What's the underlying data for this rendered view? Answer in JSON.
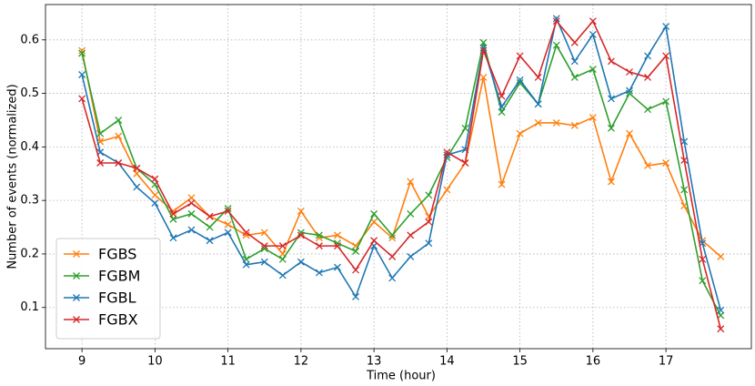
{
  "chart_data": {
    "type": "line",
    "x_label": "Time (hour)",
    "y_label": "Number of events (normalized)",
    "x": [
      9,
      9.25,
      9.5,
      9.75,
      10,
      10.25,
      10.5,
      10.75,
      11,
      11.25,
      11.5,
      11.75,
      12,
      12.25,
      12.5,
      12.75,
      13,
      13.25,
      13.5,
      13.75,
      14,
      14.25,
      14.5,
      14.75,
      15,
      15.25,
      15.5,
      15.75,
      16,
      16.25,
      16.5,
      16.75,
      17,
      17.25,
      17.5,
      17.75
    ],
    "series": [
      {
        "name": "FGBS",
        "color": "#ff7f0e",
        "values": [
          0.58,
          0.41,
          0.42,
          0.35,
          0.31,
          0.28,
          0.305,
          0.27,
          0.255,
          0.235,
          0.24,
          0.2,
          0.28,
          0.23,
          0.235,
          0.215,
          0.26,
          0.23,
          0.335,
          0.27,
          0.32,
          0.37,
          0.53,
          0.33,
          0.425,
          0.445,
          0.445,
          0.44,
          0.455,
          0.335,
          0.425,
          0.365,
          0.37,
          0.29,
          0.225,
          0.195
        ]
      },
      {
        "name": "FGBM",
        "color": "#2ca02c",
        "values": [
          0.575,
          0.425,
          0.45,
          0.36,
          0.33,
          0.265,
          0.275,
          0.25,
          0.285,
          0.19,
          0.21,
          0.19,
          0.24,
          0.235,
          0.22,
          0.205,
          0.275,
          0.235,
          0.275,
          0.31,
          0.38,
          0.435,
          0.595,
          0.465,
          0.52,
          0.48,
          0.59,
          0.53,
          0.545,
          0.435,
          0.5,
          0.47,
          0.485,
          0.32,
          0.15,
          0.085
        ]
      },
      {
        "name": "FGBL",
        "color": "#1f77b4",
        "values": [
          0.535,
          0.39,
          0.37,
          0.325,
          0.295,
          0.23,
          0.245,
          0.225,
          0.24,
          0.18,
          0.185,
          0.16,
          0.185,
          0.165,
          0.175,
          0.12,
          0.215,
          0.155,
          0.195,
          0.22,
          0.385,
          0.395,
          0.585,
          0.475,
          0.525,
          0.48,
          0.64,
          0.56,
          0.61,
          0.49,
          0.505,
          0.57,
          0.625,
          0.41,
          0.22,
          0.095
        ]
      },
      {
        "name": "FGBX",
        "color": "#d62728",
        "values": [
          0.49,
          0.37,
          0.37,
          0.36,
          0.34,
          0.275,
          0.295,
          0.27,
          0.28,
          0.24,
          0.215,
          0.215,
          0.235,
          0.215,
          0.215,
          0.17,
          0.225,
          0.195,
          0.235,
          0.26,
          0.39,
          0.37,
          0.58,
          0.495,
          0.57,
          0.53,
          0.635,
          0.595,
          0.635,
          0.56,
          0.54,
          0.53,
          0.57,
          0.375,
          0.19,
          0.06
        ]
      }
    ],
    "xlim": [
      8.5,
      18.17
    ],
    "ylim": [
      0.023,
      0.666
    ],
    "xticks": [
      9,
      10,
      11,
      12,
      13,
      14,
      15,
      16,
      17
    ],
    "yticks": [
      0.1,
      0.2,
      0.3,
      0.4,
      0.5,
      0.6
    ],
    "grid": true,
    "legend": "lower left"
  }
}
